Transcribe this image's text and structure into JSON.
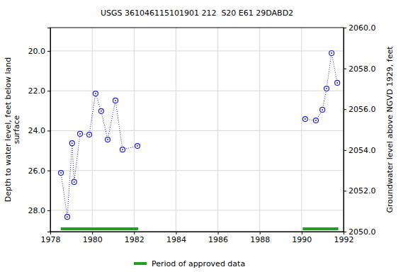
{
  "chart_data": {
    "type": "line",
    "title": "USGS 361046115101901 212  S20 E61 29DABD2",
    "x_label": "",
    "y_label": [
      "Depth to water level, feet below land",
      "surface"
    ],
    "y2_label": "Groundwater level above NGVD 1929, feet",
    "xlim": [
      1978,
      1992
    ],
    "xticks": [
      1978,
      1980,
      1982,
      1984,
      1986,
      1988,
      1990,
      1992
    ],
    "ylim": [
      18.83,
      29.07
    ],
    "yticks": [
      {
        "value": 20,
        "label": "20.0"
      },
      {
        "value": 22,
        "label": "22.0"
      },
      {
        "value": 24,
        "label": "24.0"
      },
      {
        "value": 26,
        "label": "26.0"
      },
      {
        "value": 28,
        "label": "28.0"
      }
    ],
    "y2lim": [
      2050,
      2060
    ],
    "y2ticks": [
      {
        "value": 2050,
        "label": "2050.0"
      },
      {
        "value": 2052,
        "label": "2052.0"
      },
      {
        "value": 2054,
        "label": "2054.0"
      },
      {
        "value": 2056,
        "label": "2056.0"
      },
      {
        "value": 2058,
        "label": "2058.0"
      },
      {
        "value": 2060,
        "label": "2060.0"
      }
    ],
    "grid": true,
    "series": [
      {
        "name": "Depth to water level",
        "color": "#2020d0",
        "marker": "circle",
        "line_style": "dotted",
        "x": [
          1978.51,
          1978.81,
          1979.04,
          1979.14,
          1979.42,
          1979.86,
          1980.16,
          1980.43,
          1980.74,
          1981.11,
          1981.45,
          1982.16,
          null,
          1990.17,
          1990.68,
          1990.99,
          1991.19,
          1991.43,
          1991.7
        ],
        "values": [
          26.12,
          28.33,
          24.63,
          26.58,
          24.16,
          24.2,
          22.14,
          23.02,
          24.45,
          22.49,
          24.95,
          24.77,
          null,
          23.42,
          23.49,
          22.95,
          21.89,
          20.11,
          21.6
        ]
      }
    ],
    "periods": {
      "name": "Period of approved data",
      "color": "#20a020",
      "x": [
        [
          1978.5,
          1982.2
        ],
        [
          1990.05,
          1991.75
        ]
      ]
    }
  }
}
